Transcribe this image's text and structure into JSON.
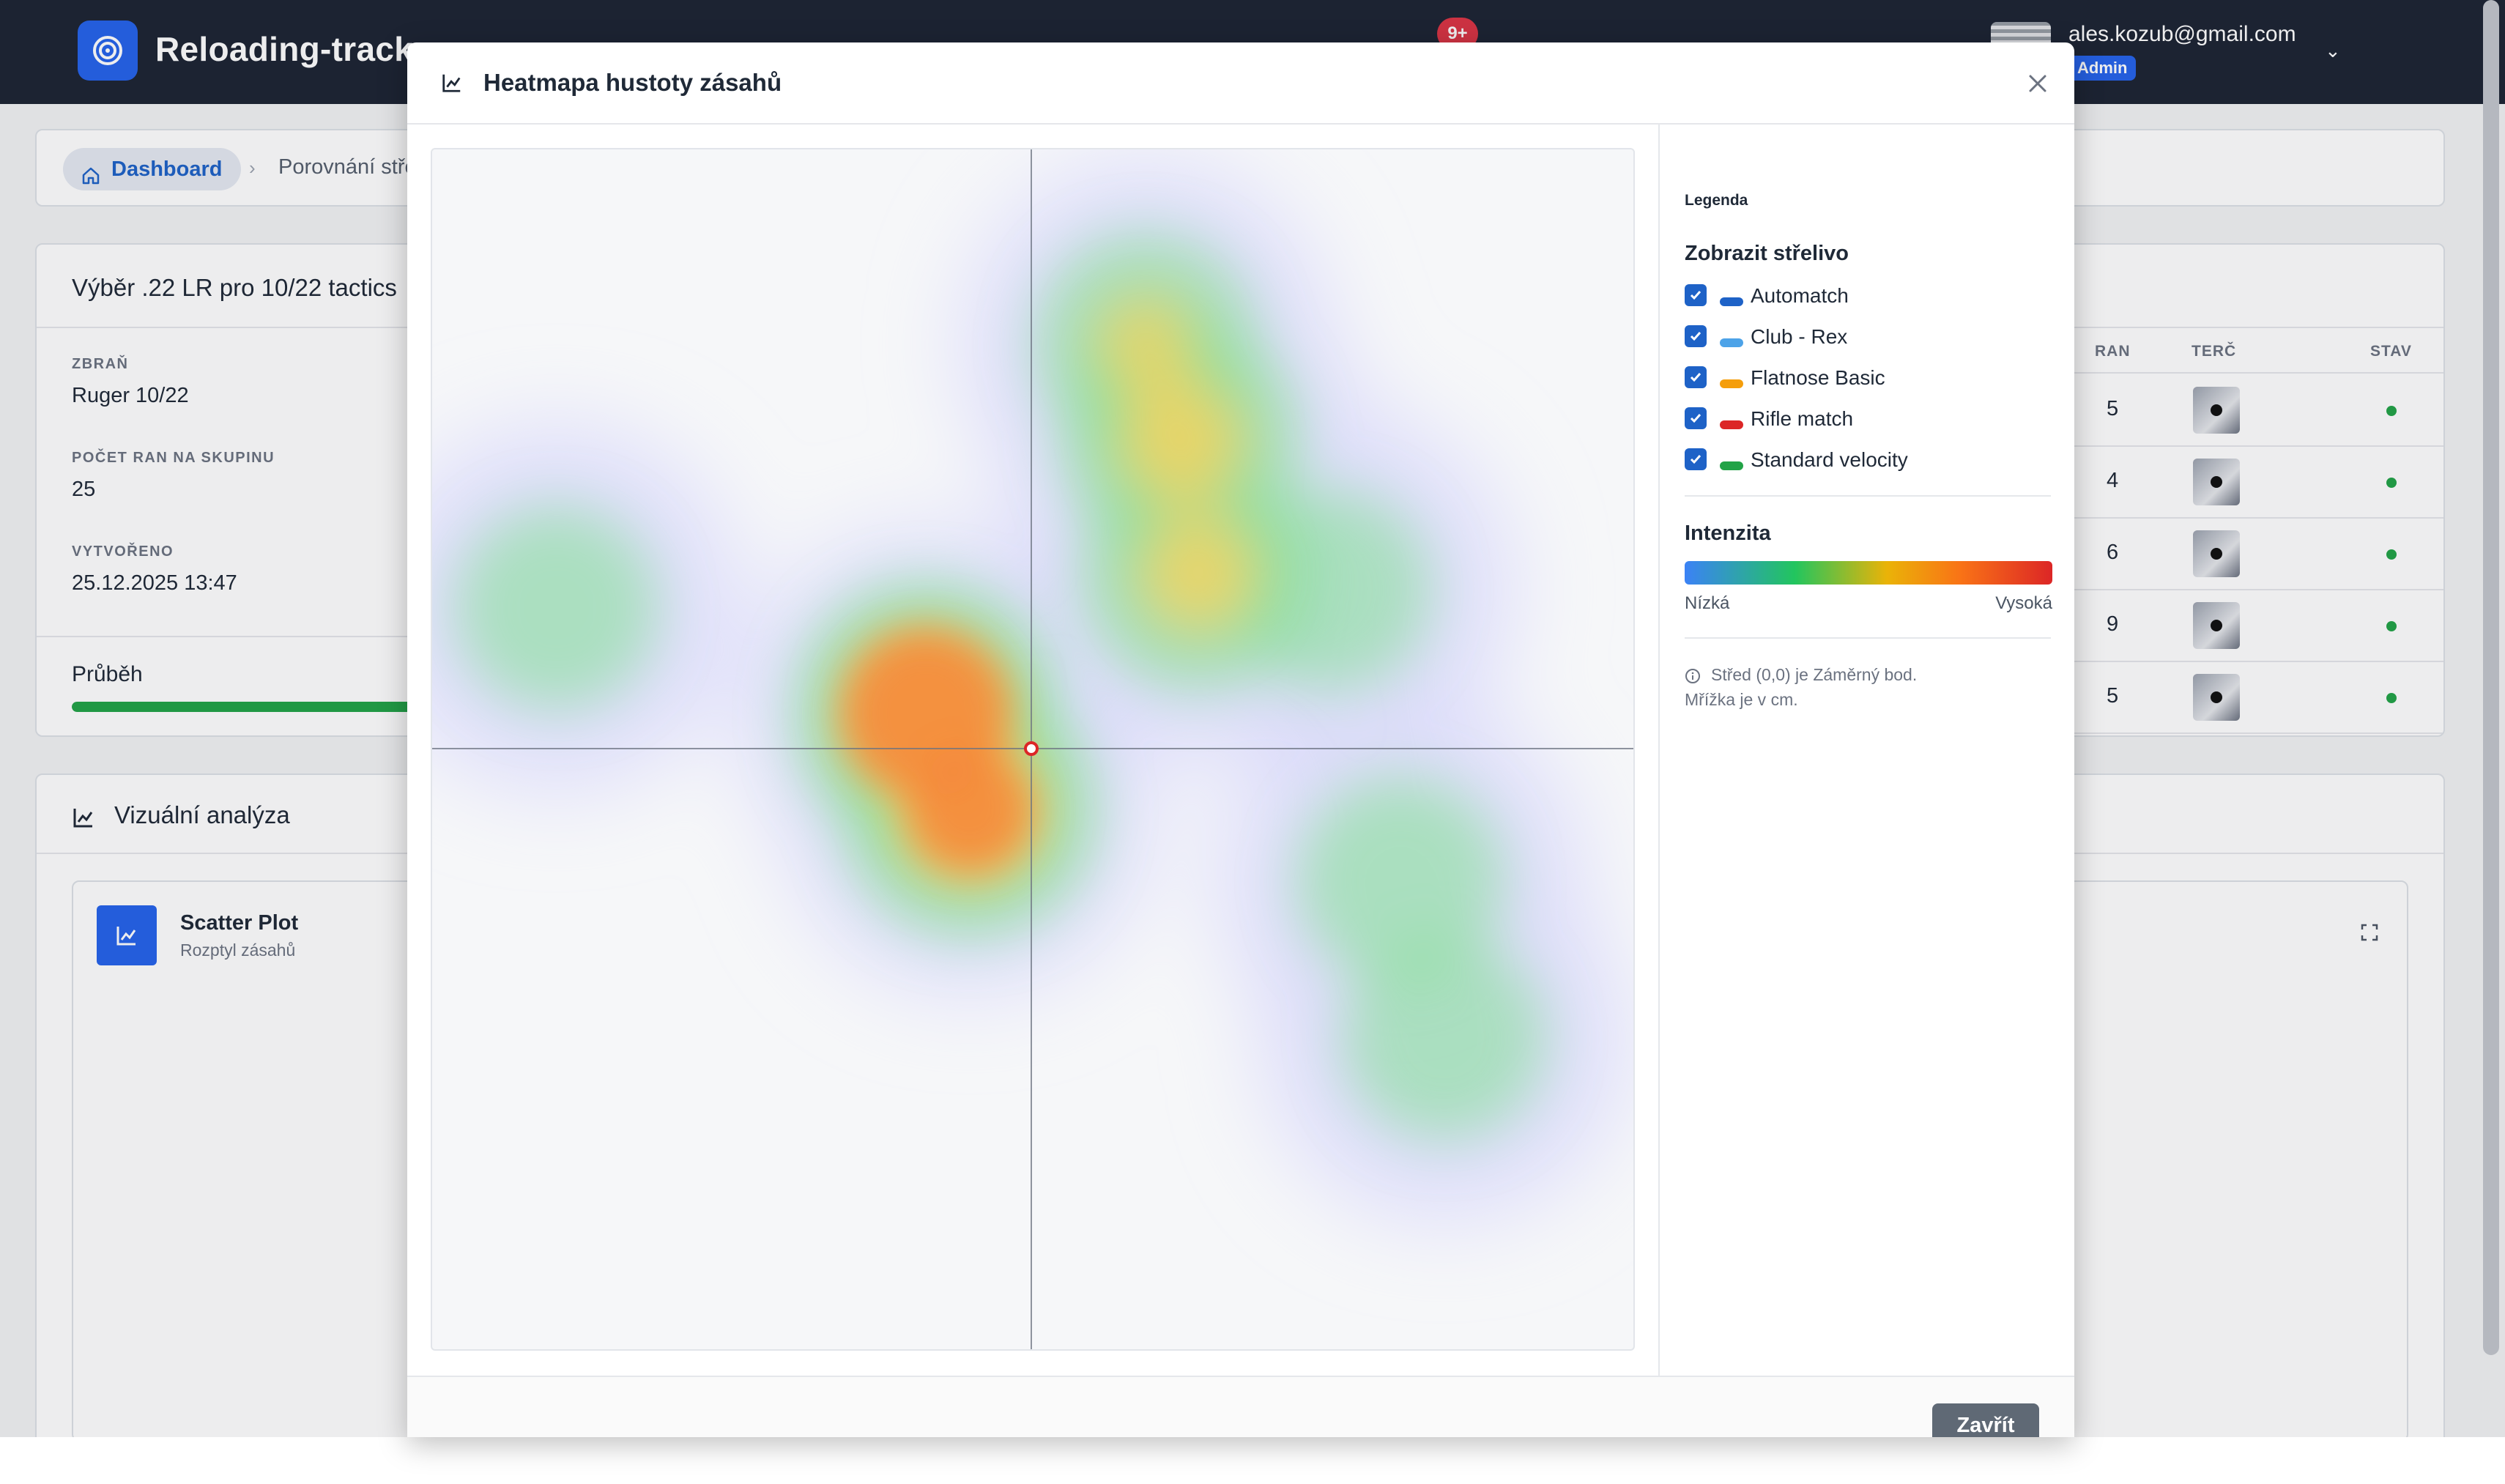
{
  "navbar": {
    "brand": "Reloading-tracker",
    "notifications": "9+",
    "user_email": "ales.kozub@gmail.com",
    "user_role": "Admin"
  },
  "breadcrumb": {
    "home": "Dashboard",
    "current": "Porovnání střeliva"
  },
  "session": {
    "title": "Výběr .22 LR pro 10/22 tactics",
    "weapon_label": "ZBRAŇ",
    "weapon": "Ruger 10/22",
    "shots_label": "POČET RAN NA SKUPINU",
    "shots": "25",
    "created_label": "VYTVOŘENO",
    "created": "25.12.2025 13:47",
    "progress_label": "Průběh",
    "progress_percent": 100
  },
  "groups_table": {
    "headers": [
      "RAN",
      "TERČ",
      "STAV"
    ],
    "rows": [
      {
        "shots": "5"
      },
      {
        "shots": "4"
      },
      {
        "shots": "6"
      },
      {
        "shots": "9"
      },
      {
        "shots": "5"
      }
    ],
    "status_color": "#22a347"
  },
  "visual": {
    "title": "Vizuální analýza",
    "scatter_title": "Scatter Plot",
    "scatter_subtitle": "Rozptyl zásahů"
  },
  "modal": {
    "title": "Heatmapa hustoty zásahů",
    "legend_heading": "Legenda",
    "ammo_heading": "Zobrazit střelivo",
    "ammo": [
      {
        "name": "Automatch",
        "color": "#1e62c7",
        "checked": true
      },
      {
        "name": "Club - Rex",
        "color": "#4da3e8",
        "checked": true
      },
      {
        "name": "Flatnose Basic",
        "color": "#f59e0b",
        "checked": true
      },
      {
        "name": "Rifle match",
        "color": "#dc2626",
        "checked": true
      },
      {
        "name": "Standard velocity",
        "color": "#22a347",
        "checked": true
      }
    ],
    "intensity_title": "Intenzita",
    "intensity_low": "Nízká",
    "intensity_high": "Vysoká",
    "note_line1": "Střed (0,0) je Záměrný bod.",
    "note_line2": "Mřížka je v cm.",
    "close_button": "Zavřít"
  },
  "chart_data": {
    "type": "heatmap",
    "title": "Heatmapa hustoty zásahů",
    "xlabel": "",
    "ylabel": "",
    "origin": [
      0,
      0
    ],
    "density_clusters": [
      {
        "x": -1.2,
        "y": 0.4,
        "intensity": 0.95
      },
      {
        "x": -0.7,
        "y": -0.7,
        "intensity": 0.85
      },
      {
        "x": 1.7,
        "y": 3.5,
        "intensity": 0.7
      },
      {
        "x": 1.9,
        "y": 2.0,
        "intensity": 0.65
      },
      {
        "x": 1.3,
        "y": 4.6,
        "intensity": 0.5
      },
      {
        "x": -5.4,
        "y": 1.6,
        "intensity": 0.3
      },
      {
        "x": 4.2,
        "y": -1.5,
        "intensity": 0.35
      },
      {
        "x": 4.7,
        "y": -3.3,
        "intensity": 0.3
      },
      {
        "x": 3.4,
        "y": 1.8,
        "intensity": 0.3
      }
    ]
  }
}
